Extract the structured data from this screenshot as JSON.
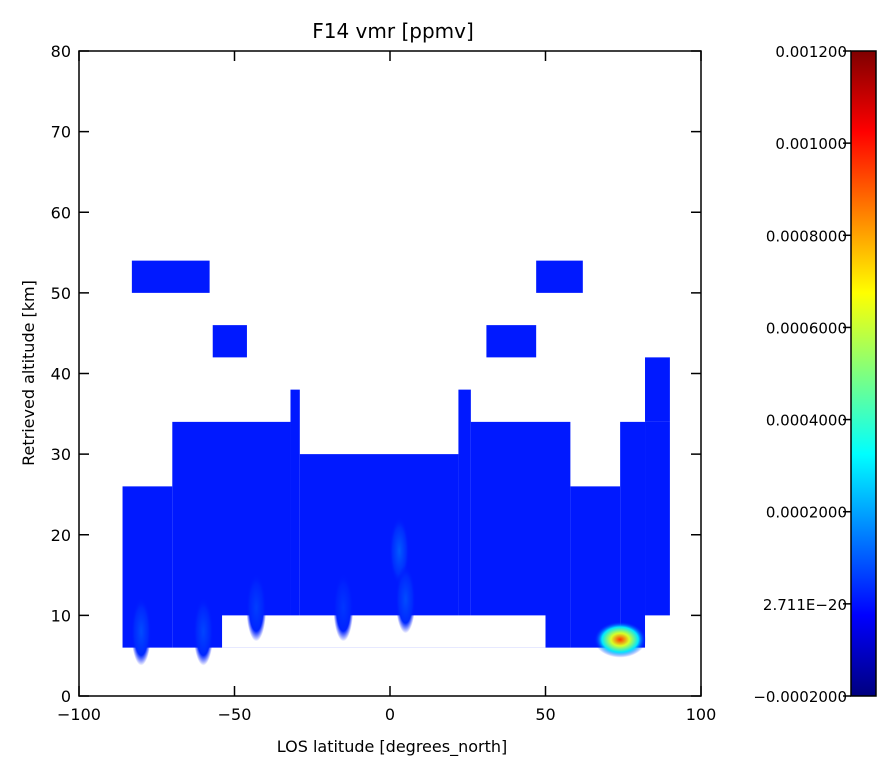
{
  "chart_data": {
    "type": "heatmap",
    "title": "F14 vmr [ppmv]",
    "xlabel": "LOS latitude [degrees_north]",
    "ylabel": "Retrieved altitude [km]",
    "xlim": [
      -100,
      100
    ],
    "ylim": [
      0,
      80
    ],
    "xticks": [
      -100,
      -50,
      0,
      50,
      100
    ],
    "yticks": [
      0,
      10,
      20,
      30,
      40,
      50,
      60,
      70,
      80
    ],
    "grid": false,
    "colorbar": {
      "range": [
        -0.0002,
        0.0012
      ],
      "tick_values": [
        -0.0002,
        0.0,
        0.0002,
        0.0004,
        0.0006,
        0.0008,
        0.001,
        0.0012
      ],
      "tick_labels": [
        "−0.0002000",
        "2.711E−20",
        "0.0002000",
        "0.0004000",
        "0.0006000",
        "0.0008000",
        "0.001000",
        "0.001200"
      ],
      "colormap": [
        "#00007f",
        "#0000ff",
        "#007fff",
        "#00ffff",
        "#7fff7f",
        "#ffff00",
        "#ff7f00",
        "#ff0000",
        "#7f0000"
      ]
    },
    "background_value": 1e-05,
    "regions": [
      {
        "lat": [
          -86,
          -70
        ],
        "alt": [
          6,
          26
        ]
      },
      {
        "lat": [
          -70,
          -32
        ],
        "alt": [
          6,
          34
        ]
      },
      {
        "lat": [
          -32,
          -29
        ],
        "alt": [
          6,
          38
        ]
      },
      {
        "lat": [
          -29,
          22
        ],
        "alt": [
          6,
          30
        ]
      },
      {
        "lat": [
          22,
          26
        ],
        "alt": [
          6,
          38
        ]
      },
      {
        "lat": [
          26,
          58
        ],
        "alt": [
          6,
          34
        ]
      },
      {
        "lat": [
          58,
          74
        ],
        "alt": [
          6,
          26
        ]
      },
      {
        "lat": [
          74,
          82
        ],
        "alt": [
          6,
          34
        ]
      },
      {
        "lat": [
          82,
          90
        ],
        "alt": [
          10,
          34
        ]
      },
      {
        "lat": [
          82,
          90
        ],
        "alt": [
          34,
          42
        ]
      },
      {
        "lat": [
          -83,
          -58
        ],
        "alt": [
          50,
          54
        ]
      },
      {
        "lat": [
          -57,
          -46
        ],
        "alt": [
          42,
          46
        ]
      },
      {
        "lat": [
          31,
          47
        ],
        "alt": [
          42,
          46
        ]
      },
      {
        "lat": [
          47,
          62
        ],
        "alt": [
          50,
          54
        ]
      }
    ],
    "gaps": [
      {
        "lat": [
          -54,
          50
        ],
        "alt": [
          6,
          10
        ]
      }
    ],
    "features": [
      {
        "lat": 74,
        "alt": 7,
        "value": 0.00095
      },
      {
        "lat": 3,
        "alt": 18,
        "value": 0.0001
      },
      {
        "lat": -80,
        "alt": 8,
        "value": 8e-05
      },
      {
        "lat": -60,
        "alt": 8,
        "value": 7e-05
      },
      {
        "lat": -43,
        "alt": 11,
        "value": 6e-05
      },
      {
        "lat": -15,
        "alt": 11,
        "value": 5e-05
      },
      {
        "lat": 5,
        "alt": 12,
        "value": 8e-05
      }
    ]
  }
}
